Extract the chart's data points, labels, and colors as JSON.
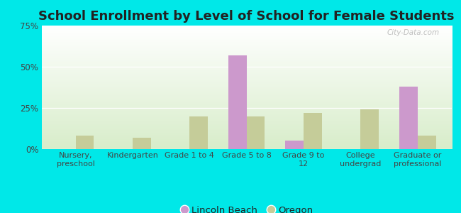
{
  "title": "School Enrollment by Level of School for Female Students",
  "categories": [
    "Nursery,\npreschool",
    "Kindergarten",
    "Grade 1 to 4",
    "Grade 5 to 8",
    "Grade 9 to\n12",
    "College\nundergrad",
    "Graduate or\nprofessional"
  ],
  "lincoln_beach": [
    0,
    0,
    0,
    57,
    5,
    0,
    38
  ],
  "oregon": [
    8,
    7,
    20,
    20,
    22,
    24,
    8
  ],
  "lincoln_beach_color": "#cc99cc",
  "oregon_color": "#c5cc99",
  "ylim": [
    0,
    75
  ],
  "yticks": [
    0,
    25,
    50,
    75
  ],
  "ytick_labels": [
    "0%",
    "25%",
    "50%",
    "75%"
  ],
  "background_color": "#00e8e8",
  "title_fontsize": 13,
  "legend_labels": [
    "Lincoln Beach",
    "Oregon"
  ],
  "watermark": "City-Data.com",
  "bar_width": 0.32
}
